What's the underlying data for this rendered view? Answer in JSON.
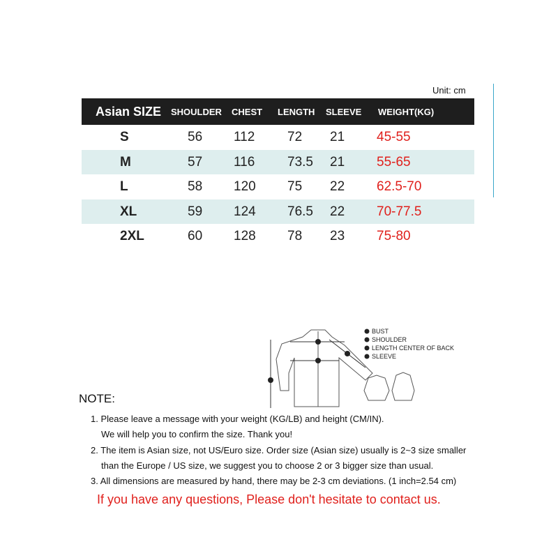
{
  "unit_label": "Unit: cm",
  "table": {
    "headers": [
      "Asian SIZE",
      "SHOULDER",
      "CHEST",
      "LENGTH",
      "SLEEVE",
      "WEIGHT(KG)"
    ],
    "rows": [
      {
        "size": "S",
        "shoulder": "56",
        "chest": "112",
        "length": "72",
        "sleeve": "21",
        "weight": "45-55"
      },
      {
        "size": "M",
        "shoulder": "57",
        "chest": "116",
        "length": "73.5",
        "sleeve": "21",
        "weight": "55-65"
      },
      {
        "size": "L",
        "shoulder": "58",
        "chest": "120",
        "length": "75",
        "sleeve": "22",
        "weight": "62.5-70"
      },
      {
        "size": "XL",
        "shoulder": "59",
        "chest": "124",
        "length": "76.5",
        "sleeve": "22",
        "weight": "70-77.5"
      },
      {
        "size": "2XL",
        "shoulder": "60",
        "chest": "128",
        "length": "78",
        "sleeve": "23",
        "weight": "75-80"
      }
    ]
  },
  "diagram": {
    "legend": [
      "BUST",
      "SHOULDER",
      "LENGTH CENTER OF BACK",
      "SLEEVE"
    ],
    "markers": [
      "1",
      "2",
      "3",
      "4"
    ]
  },
  "notes": {
    "title": "NOTE:",
    "lines": [
      "1. Please leave a message with your weight (KG/LB) and height (CM/IN).",
      "We will help you to confirm the size. Thank you!",
      "2. The item is Asian size, not US/Euro size. Order size (Asian size) usually is  2~3 size smaller",
      "than the Europe / US size, we suggest you to choose 2 or 3 bigger size than usual.",
      "3. All dimensions are measured by hand, there may be 2-3 cm deviations. (1 inch=2.54 cm)"
    ]
  },
  "contact": "If you have any questions, Please don't hesitate to contact us.",
  "colors": {
    "header_bg": "#1e1e1e",
    "alt_row": "#deeeee",
    "weight_text": "#e0201c"
  }
}
